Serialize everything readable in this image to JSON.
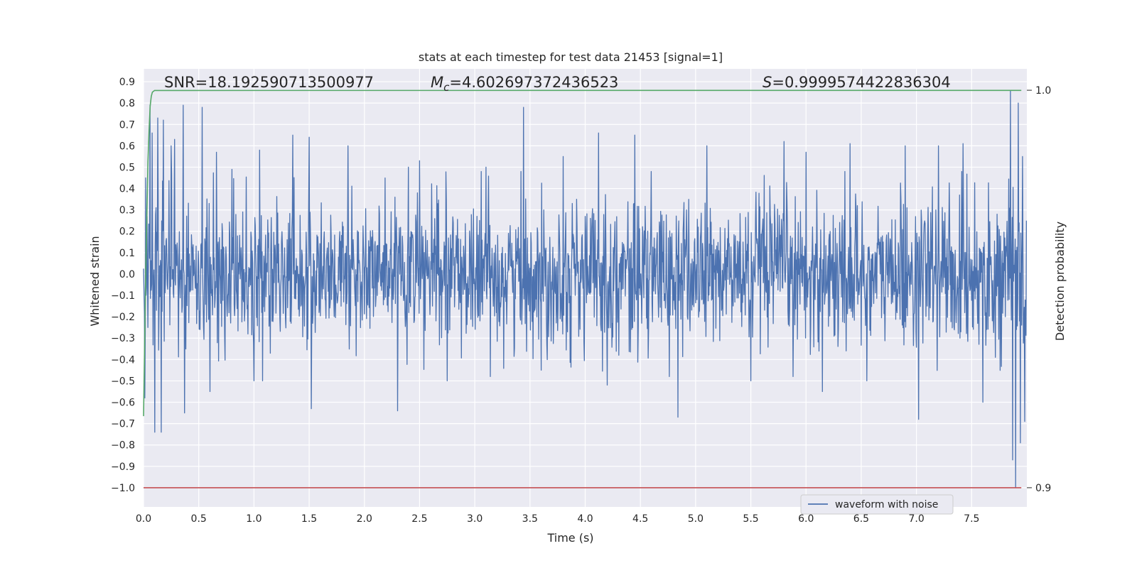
{
  "chart_data": {
    "type": "line",
    "title": "stats at each timestep for test data 21453 [signal=1]",
    "xlabel": "Time (s)",
    "ylabel": "Whitened strain",
    "y2label": "Detection probability",
    "xlim": [
      0.0,
      8.0
    ],
    "ylim": [
      -1.09,
      0.96
    ],
    "y2lim": [
      0.9,
      1.0
    ],
    "x_ticks": [
      "0.0",
      "0.5",
      "1.0",
      "1.5",
      "2.0",
      "2.5",
      "3.0",
      "3.5",
      "4.0",
      "4.5",
      "5.0",
      "5.5",
      "6.0",
      "6.5",
      "7.0",
      "7.5"
    ],
    "y_ticks": [
      "0.9",
      "0.8",
      "0.7",
      "0.6",
      "0.5",
      "0.4",
      "0.3",
      "0.2",
      "0.1",
      "0.0",
      "-0.1",
      "-0.2",
      "-0.3",
      "-0.4",
      "-0.5",
      "-0.6",
      "-0.7",
      "-0.8",
      "-0.9",
      "-1.0"
    ],
    "y2_ticks": [
      "1.0",
      "0.9"
    ],
    "grid": true,
    "legend": {
      "position": "lower-right",
      "entries": [
        "waveform with noise"
      ]
    },
    "annotations": {
      "snr": "SNR=18.192590713500977",
      "mc_symbol": "M",
      "mc_sub": "c",
      "mc_value": "=4.602697372436523",
      "s_symbol": "S",
      "s_value": "=0.9999574422836304"
    },
    "series": [
      {
        "name": "waveform with noise",
        "axis": "left",
        "color": "#4c72b0",
        "style": "noise",
        "sample_rate": 256,
        "x_range": [
          0.0,
          8.0
        ],
        "amplitude_rms": 0.17,
        "spikes": [
          [
            0.01,
            -0.58
          ],
          [
            0.02,
            0.45
          ],
          [
            0.04,
            -0.25
          ],
          [
            0.06,
            0.79
          ],
          [
            0.08,
            0.66
          ],
          [
            0.1,
            -0.74
          ],
          [
            0.13,
            0.73
          ],
          [
            0.16,
            -0.74
          ],
          [
            0.18,
            0.72
          ],
          [
            0.25,
            0.6
          ],
          [
            0.28,
            0.63
          ],
          [
            0.36,
            0.79
          ],
          [
            0.37,
            -0.65
          ],
          [
            0.53,
            0.78
          ],
          [
            0.6,
            -0.55
          ],
          [
            0.66,
            0.57
          ],
          [
            0.8,
            0.49
          ],
          [
            1.0,
            -0.5
          ],
          [
            1.05,
            0.58
          ],
          [
            1.08,
            -0.5
          ],
          [
            1.35,
            0.65
          ],
          [
            1.5,
            0.64
          ],
          [
            1.52,
            -0.63
          ],
          [
            1.85,
            0.6
          ],
          [
            2.3,
            -0.64
          ],
          [
            2.4,
            0.5
          ],
          [
            2.5,
            0.53
          ],
          [
            2.75,
            -0.5
          ],
          [
            3.1,
            0.5
          ],
          [
            3.44,
            0.78
          ],
          [
            3.6,
            -0.45
          ],
          [
            3.8,
            0.55
          ],
          [
            4.12,
            0.66
          ],
          [
            4.2,
            -0.52
          ],
          [
            4.45,
            0.65
          ],
          [
            4.84,
            -0.67
          ],
          [
            5.1,
            0.6
          ],
          [
            5.5,
            -0.5
          ],
          [
            5.8,
            0.62
          ],
          [
            6.0,
            0.57
          ],
          [
            6.15,
            -0.55
          ],
          [
            6.4,
            0.61
          ],
          [
            6.55,
            -0.5
          ],
          [
            6.9,
            0.6
          ],
          [
            7.02,
            -0.68
          ],
          [
            7.2,
            0.6
          ],
          [
            7.42,
            0.61
          ],
          [
            7.6,
            -0.6
          ],
          [
            7.85,
            0.86
          ],
          [
            7.87,
            -0.87
          ],
          [
            7.9,
            -1.0
          ],
          [
            7.92,
            0.8
          ],
          [
            7.94,
            -0.79
          ],
          [
            7.96,
            0.55
          ],
          [
            7.98,
            -0.69
          ]
        ]
      },
      {
        "name": "detection probability",
        "axis": "right",
        "color": "#55a868",
        "x": [
          0.0,
          0.02,
          0.04,
          0.05,
          0.06,
          0.07,
          0.08,
          0.1,
          7.95
        ],
        "y": [
          0.918,
          0.955,
          0.982,
          0.99,
          0.996,
          0.9985,
          0.9995,
          0.99995,
          0.99996
        ]
      },
      {
        "name": "threshold",
        "axis": "right",
        "color": "#c44e52",
        "x": [
          0.0,
          7.95
        ],
        "y": [
          0.9,
          0.9
        ]
      }
    ]
  }
}
